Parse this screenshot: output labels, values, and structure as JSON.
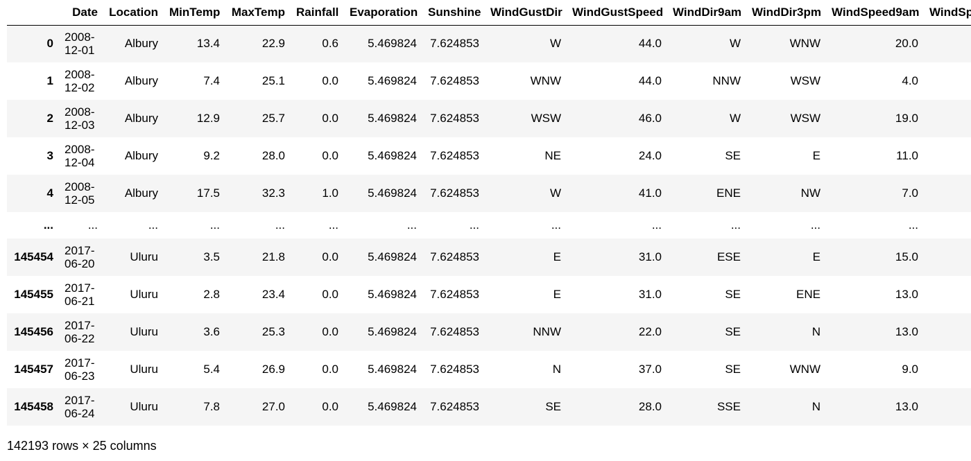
{
  "columns": [
    "",
    "Date",
    "Location",
    "MinTemp",
    "MaxTemp",
    "Rainfall",
    "Evaporation",
    "Sunshine",
    "WindGustDir",
    "WindGustSpeed",
    "WindDir9am",
    "WindDir3pm",
    "WindSpeed9am",
    "WindSp"
  ],
  "rows": [
    {
      "index": "0",
      "date": "2008-12-01",
      "location": "Albury",
      "mintemp": "13.4",
      "maxtemp": "22.9",
      "rainfall": "0.6",
      "evaporation": "5.469824",
      "sunshine": "7.624853",
      "windgustdir": "W",
      "windgustspeed": "44.0",
      "winddir9am": "W",
      "winddir3pm": "WNW",
      "windspeed9am": "20.0"
    },
    {
      "index": "1",
      "date": "2008-12-02",
      "location": "Albury",
      "mintemp": "7.4",
      "maxtemp": "25.1",
      "rainfall": "0.0",
      "evaporation": "5.469824",
      "sunshine": "7.624853",
      "windgustdir": "WNW",
      "windgustspeed": "44.0",
      "winddir9am": "NNW",
      "winddir3pm": "WSW",
      "windspeed9am": "4.0"
    },
    {
      "index": "2",
      "date": "2008-12-03",
      "location": "Albury",
      "mintemp": "12.9",
      "maxtemp": "25.7",
      "rainfall": "0.0",
      "evaporation": "5.469824",
      "sunshine": "7.624853",
      "windgustdir": "WSW",
      "windgustspeed": "46.0",
      "winddir9am": "W",
      "winddir3pm": "WSW",
      "windspeed9am": "19.0"
    },
    {
      "index": "3",
      "date": "2008-12-04",
      "location": "Albury",
      "mintemp": "9.2",
      "maxtemp": "28.0",
      "rainfall": "0.0",
      "evaporation": "5.469824",
      "sunshine": "7.624853",
      "windgustdir": "NE",
      "windgustspeed": "24.0",
      "winddir9am": "SE",
      "winddir3pm": "E",
      "windspeed9am": "11.0"
    },
    {
      "index": "4",
      "date": "2008-12-05",
      "location": "Albury",
      "mintemp": "17.5",
      "maxtemp": "32.3",
      "rainfall": "1.0",
      "evaporation": "5.469824",
      "sunshine": "7.624853",
      "windgustdir": "W",
      "windgustspeed": "41.0",
      "winddir9am": "ENE",
      "winddir3pm": "NW",
      "windspeed9am": "7.0"
    },
    {
      "index": "...",
      "date": "...",
      "location": "...",
      "mintemp": "...",
      "maxtemp": "...",
      "rainfall": "...",
      "evaporation": "...",
      "sunshine": "...",
      "windgustdir": "...",
      "windgustspeed": "...",
      "winddir9am": "...",
      "winddir3pm": "...",
      "windspeed9am": "..."
    },
    {
      "index": "145454",
      "date": "2017-06-20",
      "location": "Uluru",
      "mintemp": "3.5",
      "maxtemp": "21.8",
      "rainfall": "0.0",
      "evaporation": "5.469824",
      "sunshine": "7.624853",
      "windgustdir": "E",
      "windgustspeed": "31.0",
      "winddir9am": "ESE",
      "winddir3pm": "E",
      "windspeed9am": "15.0"
    },
    {
      "index": "145455",
      "date": "2017-06-21",
      "location": "Uluru",
      "mintemp": "2.8",
      "maxtemp": "23.4",
      "rainfall": "0.0",
      "evaporation": "5.469824",
      "sunshine": "7.624853",
      "windgustdir": "E",
      "windgustspeed": "31.0",
      "winddir9am": "SE",
      "winddir3pm": "ENE",
      "windspeed9am": "13.0"
    },
    {
      "index": "145456",
      "date": "2017-06-22",
      "location": "Uluru",
      "mintemp": "3.6",
      "maxtemp": "25.3",
      "rainfall": "0.0",
      "evaporation": "5.469824",
      "sunshine": "7.624853",
      "windgustdir": "NNW",
      "windgustspeed": "22.0",
      "winddir9am": "SE",
      "winddir3pm": "N",
      "windspeed9am": "13.0"
    },
    {
      "index": "145457",
      "date": "2017-06-23",
      "location": "Uluru",
      "mintemp": "5.4",
      "maxtemp": "26.9",
      "rainfall": "0.0",
      "evaporation": "5.469824",
      "sunshine": "7.624853",
      "windgustdir": "N",
      "windgustspeed": "37.0",
      "winddir9am": "SE",
      "winddir3pm": "WNW",
      "windspeed9am": "9.0"
    },
    {
      "index": "145458",
      "date": "2017-06-24",
      "location": "Uluru",
      "mintemp": "7.8",
      "maxtemp": "27.0",
      "rainfall": "0.0",
      "evaporation": "5.469824",
      "sunshine": "7.624853",
      "windgustdir": "SE",
      "windgustspeed": "28.0",
      "winddir9am": "SSE",
      "winddir3pm": "N",
      "windspeed9am": "13.0"
    }
  ],
  "footer": "142193 rows × 25 columns"
}
